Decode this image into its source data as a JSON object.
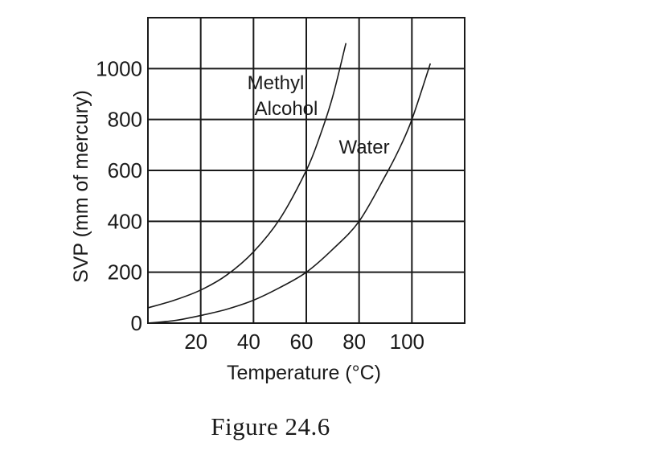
{
  "caption": "Figure 24.6",
  "chart_data": {
    "type": "line",
    "title": "",
    "xlabel": "Temperature (°C)",
    "ylabel": "SVP (mm of mercury)",
    "xlim": [
      0,
      120
    ],
    "ylim": [
      0,
      1200
    ],
    "x_ticks": [
      20,
      40,
      60,
      80,
      100
    ],
    "y_ticks": [
      0,
      200,
      400,
      600,
      800,
      1000
    ],
    "x_grid": [
      0,
      20,
      40,
      60,
      80,
      100,
      120
    ],
    "y_grid": [
      0,
      200,
      400,
      600,
      800,
      1000,
      1200
    ],
    "grid": true,
    "legend": "none",
    "series": [
      {
        "name": "Methyl Alcohol",
        "label_lines": [
          "Methyl",
          "Alcohol"
        ],
        "x": [
          0,
          10,
          20,
          30,
          40,
          50,
          60,
          65,
          70,
          75
        ],
        "y": [
          60,
          90,
          130,
          190,
          280,
          410,
          600,
          730,
          890,
          1100
        ]
      },
      {
        "name": "Water",
        "label_lines": [
          "Water"
        ],
        "x": [
          0,
          10,
          20,
          30,
          40,
          50,
          60,
          70,
          80,
          90,
          95,
          100,
          107
        ],
        "y": [
          0,
          10,
          30,
          55,
          90,
          140,
          200,
          290,
          400,
          580,
          680,
          800,
          1020
        ]
      }
    ]
  }
}
